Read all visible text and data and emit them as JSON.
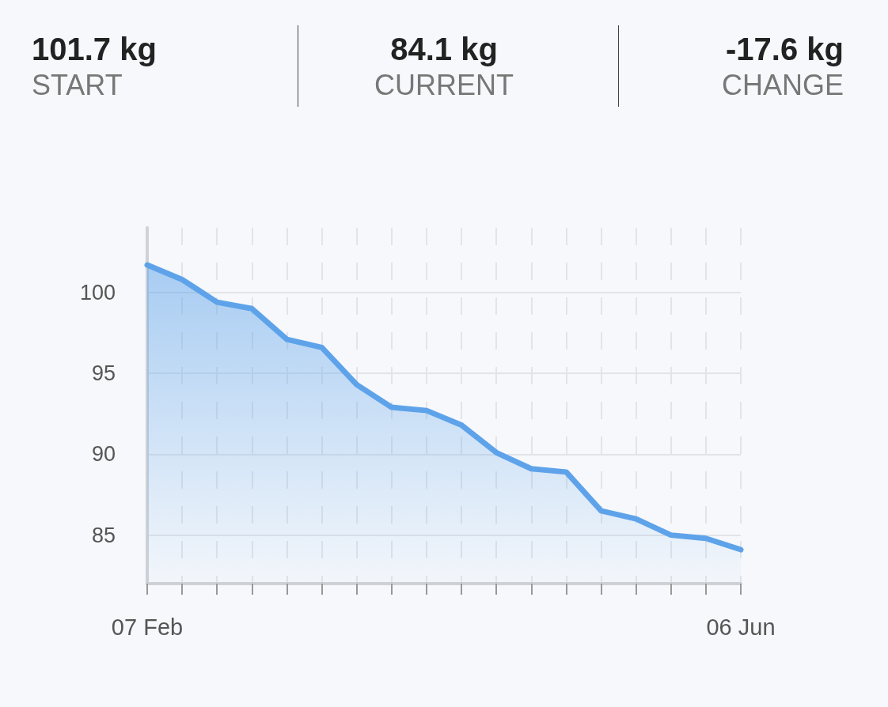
{
  "chart_data": {
    "type": "area",
    "annotations": [
      "101.7 kg",
      "START",
      "84.1 kg",
      "CURRENT",
      "-17.6 kg",
      "CHANGE"
    ],
    "categories": [
      "07 Feb",
      null,
      null,
      null,
      null,
      null,
      null,
      null,
      null,
      null,
      null,
      null,
      null,
      null,
      null,
      null,
      null,
      "06 Jun"
    ],
    "series": [
      {
        "color": "#5ea3ea",
        "values": [
          101.7,
          100.8,
          99.4,
          99.0,
          97.1,
          96.6,
          94.3,
          92.9,
          92.7,
          91.8,
          90.1,
          89.1,
          88.9,
          86.5,
          86.0,
          85.0,
          84.8,
          84.1
        ]
      }
    ],
    "ylim": [
      82,
      104
    ],
    "yticks": [
      85,
      90,
      95,
      100
    ],
    "grid": true,
    "marker": "none",
    "line_style": "solid"
  }
}
